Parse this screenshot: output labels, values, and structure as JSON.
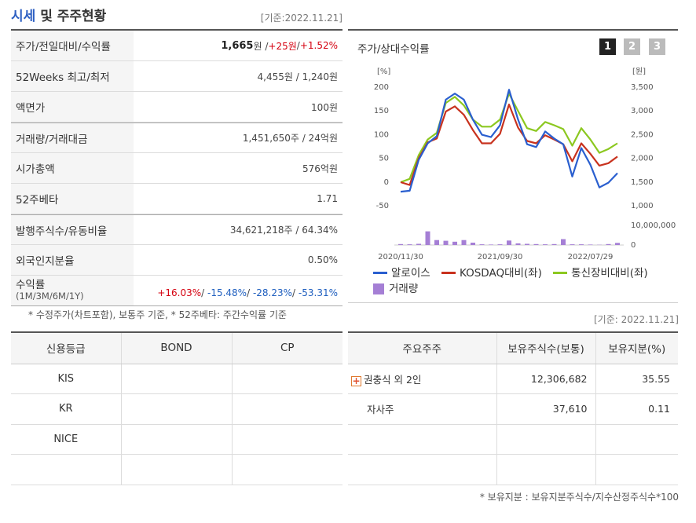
{
  "header": {
    "title_blue": "시세",
    "title_rest": " 및 주주현황",
    "date": "[기준:2022.11.21]"
  },
  "info": {
    "rows": [
      {
        "label": "주가/전일대비/수익률",
        "price": "1,665",
        "unit": "원 / ",
        "change": "+25원",
        "sep": " / ",
        "rate": "+1.52%"
      },
      {
        "label": "52Weeks 최고/최저",
        "value": "4,455원 / 1,240원"
      },
      {
        "label": "액면가",
        "value": "100원"
      },
      {
        "label": "거래량/거래대금",
        "value": "1,451,650주 / 24억원"
      },
      {
        "label": "시가총액",
        "value": "576억원"
      },
      {
        "label": "52주베타",
        "value": "1.71"
      },
      {
        "label": "발행주식수/유동비율",
        "value": "34,621,218주 / 64.34%"
      },
      {
        "label": "외국인지분율",
        "value": "0.50%"
      }
    ],
    "returns": {
      "label": "수익률",
      "sublabel": "(1M/3M/6M/1Y)",
      "r1": "+16.03%",
      "r2": "-15.48%",
      "r3": "-28.23%",
      "r4": "-53.31%"
    }
  },
  "note_left": "* 수정주가(차트포함), 보통주 기준, * 52주베타: 주간수익률 기준",
  "chart_panel": {
    "title": "주가/상대수익률",
    "pages": [
      "1",
      "2",
      "3"
    ],
    "legend": {
      "s1": "알로이스",
      "s2": "KOSDAQ대비(좌)",
      "s3": "통신장비대비(좌)",
      "vol": "거래량"
    }
  },
  "chart_data": {
    "type": "line",
    "left_axis_label": "[%]",
    "right_axis_label": "[원]",
    "left_ticks": [
      "200",
      "150",
      "100",
      "50",
      "0",
      "-50"
    ],
    "right_ticks": [
      "3,500",
      "3,000",
      "2,500",
      "2,000",
      "1,500",
      "1,000"
    ],
    "volume_ticks": [
      "10,000,000",
      "0"
    ],
    "x_ticks": [
      "2020/11/30",
      "2021/09/30",
      "2022/07/29"
    ],
    "ylim": [
      -50,
      200
    ],
    "series": [
      {
        "name": "알로이스",
        "color": "#2a5fcf",
        "values": [
          -22,
          -20,
          45,
          80,
          95,
          172,
          185,
          172,
          130,
          98,
          93,
          118,
          193,
          130,
          78,
          72,
          105,
          90,
          78,
          10,
          70,
          35,
          -13,
          -3,
          17
        ]
      },
      {
        "name": "KOSDAQ대비(좌)",
        "color": "#c8321e",
        "values": [
          -2,
          -8,
          48,
          82,
          90,
          147,
          158,
          140,
          108,
          80,
          80,
          100,
          162,
          113,
          85,
          80,
          97,
          88,
          78,
          42,
          80,
          58,
          33,
          38,
          52
        ]
      },
      {
        "name": "통신장비대비(좌)",
        "color": "#8cc820",
        "values": [
          -2,
          5,
          55,
          88,
          102,
          165,
          178,
          160,
          130,
          115,
          115,
          130,
          185,
          148,
          112,
          106,
          125,
          118,
          110,
          75,
          112,
          88,
          60,
          68,
          80
        ]
      }
    ],
    "volume": {
      "name": "거래量",
      "color": "#a57fd5",
      "values": [
        0.4,
        0.3,
        0.5,
        5.8,
        2.1,
        1.8,
        1.4,
        2.1,
        1.0,
        0.3,
        0.2,
        0.3,
        1.9,
        0.7,
        0.5,
        0.4,
        0.3,
        0.4,
        2.5,
        0.3,
        0.3,
        0.2,
        0.1,
        0.4,
        0.9
      ],
      "ylim": [
        0,
        10000000
      ]
    }
  },
  "date_right": "[기준: 2022.11.21]",
  "credit": {
    "headers": [
      "신용등급",
      "BOND",
      "CP"
    ],
    "rows": [
      "KIS",
      "KR",
      "NICE",
      ""
    ]
  },
  "holders": {
    "headers": [
      "주요주주",
      "보유주식수(보통)",
      "보유지분(%)"
    ],
    "rows": [
      {
        "name": "권충식 외 2인",
        "shares": "12,306,682",
        "pct": "35.55"
      },
      {
        "name": "자사주",
        "shares": "37,610",
        "pct": "0.11"
      }
    ]
  },
  "note_right": "* 보유지분 : 보유지분주식수/지수산정주식수*100"
}
